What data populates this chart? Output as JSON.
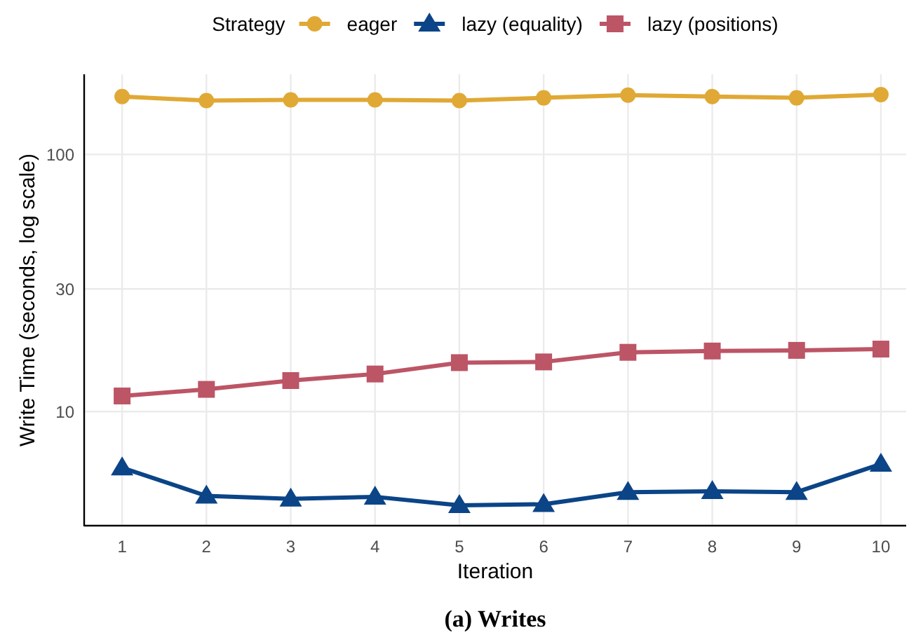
{
  "chart_data": {
    "type": "line",
    "xlabel": "Iteration",
    "ylabel": "Write Time (seconds, log scale)",
    "legend_title": "Strategy",
    "annotations": [
      "(a) Writes"
    ],
    "x": [
      1,
      2,
      3,
      4,
      5,
      6,
      7,
      8,
      9,
      10
    ],
    "series": [
      {
        "name": "eager",
        "color": "#e0a935",
        "marker": "circle",
        "values": [
          168,
          162,
          163,
          163,
          162,
          166,
          170,
          168,
          166,
          171
        ]
      },
      {
        "name": "lazy (equality)",
        "color": "#0b4487",
        "marker": "triangle",
        "values": [
          6.05,
          4.7,
          4.58,
          4.66,
          4.32,
          4.36,
          4.86,
          4.9,
          4.86,
          6.25
        ]
      },
      {
        "name": "lazy (positions)",
        "color": "#bc5566",
        "marker": "square",
        "values": [
          11.5,
          12.2,
          13.2,
          14.0,
          15.5,
          15.6,
          17.0,
          17.2,
          17.3,
          17.5
        ]
      }
    ],
    "xlim": [
      0.55,
      10.3
    ],
    "ylim": [
      3.6,
      205
    ],
    "xticks": [
      1,
      2,
      3,
      4,
      5,
      6,
      7,
      8,
      9,
      10
    ],
    "yticks": [
      10,
      30,
      100
    ],
    "log": "y",
    "grid": true,
    "legend": "top",
    "line_style": "solid"
  }
}
